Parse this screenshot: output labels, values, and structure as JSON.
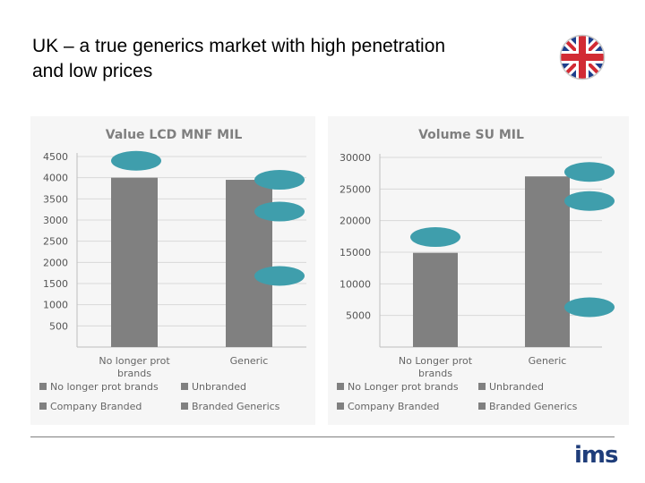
{
  "slide": {
    "title": "UK – a true generics market with high penetration\nand low prices",
    "logo_text": "ims"
  },
  "colors": {
    "bar": "#808080",
    "marker": "#3f9eac",
    "grid": "#d9d9d9",
    "legend_swatch": "#808080"
  },
  "icons": {
    "flag": "uk-flag-icon"
  },
  "chart_data": [
    {
      "type": "bar",
      "title": "Value LCD MNF MIL",
      "categories": [
        "No longer prot\nbrands",
        "Generic"
      ],
      "values": [
        4000,
        3950
      ],
      "ylim": [
        0,
        4500
      ],
      "yticks": [
        500,
        1000,
        1500,
        2000,
        2500,
        3000,
        3500,
        4000,
        4500
      ],
      "grid": true,
      "legend": [
        "No longer prot brands",
        "Unbranded",
        "Company Branded",
        "Branded Generics"
      ],
      "legend_position": "bottom",
      "markers": [
        {
          "category": 0,
          "value": 4400
        },
        {
          "category": 1,
          "value": 3950
        },
        {
          "category": 1,
          "value": 3200
        },
        {
          "category": 1,
          "value": 1680
        }
      ]
    },
    {
      "type": "bar",
      "title": "Volume SU MIL",
      "categories": [
        "No Longer prot\nbrands",
        "Generic"
      ],
      "values": [
        14900,
        27000
      ],
      "ylim": [
        0,
        30000
      ],
      "yticks": [
        5000,
        10000,
        15000,
        20000,
        25000,
        30000
      ],
      "grid": true,
      "legend": [
        "No Longer prot brands",
        "Unbranded",
        "Company Branded",
        "Branded Generics"
      ],
      "legend_position": "bottom",
      "markers": [
        {
          "category": 0,
          "value": 17400
        },
        {
          "category": 1,
          "value": 27700
        },
        {
          "category": 1,
          "value": 23100
        },
        {
          "category": 1,
          "value": 6300
        }
      ]
    }
  ]
}
